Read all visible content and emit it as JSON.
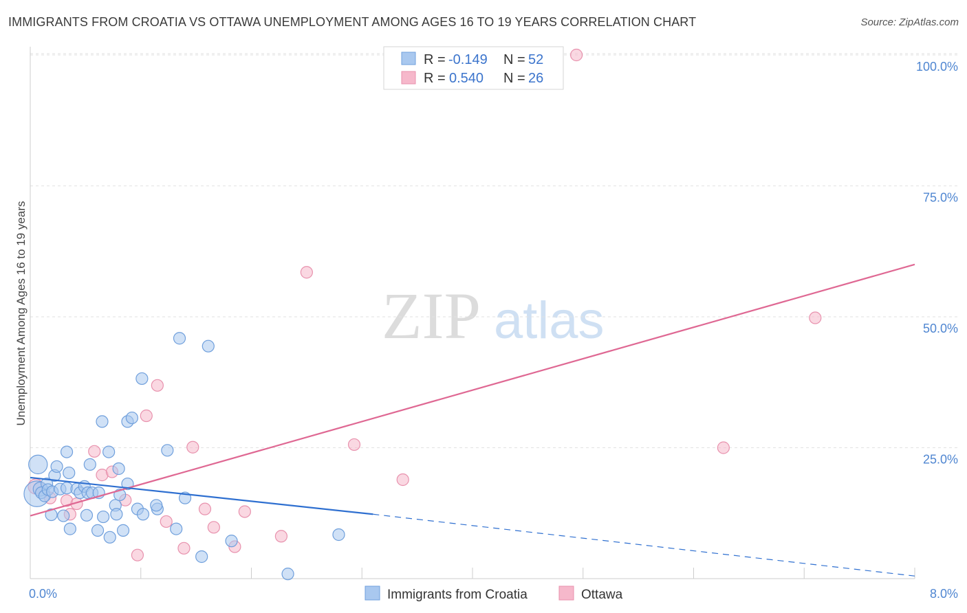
{
  "header": {
    "title": "IMMIGRANTS FROM CROATIA VS OTTAWA UNEMPLOYMENT AMONG AGES 16 TO 19 YEARS CORRELATION CHART",
    "source": "Source: ZipAtlas.com"
  },
  "watermark": {
    "zip": "ZIP",
    "atlas": "atlas"
  },
  "colors": {
    "blue_fill": "#a9c8ef",
    "blue_stroke": "#6f9fdc",
    "blue_line": "#2e6fd0",
    "pink_fill": "#f6b8cb",
    "pink_stroke": "#e891ad",
    "pink_line": "#df6893",
    "accent_text": "#4f86d1"
  },
  "legend": {
    "rows": [
      {
        "r_label": "R =",
        "r_value": "-0.149",
        "n_label": "N =",
        "n_value": "52"
      },
      {
        "r_label": "R =",
        "r_value": "0.540",
        "n_label": "N =",
        "n_value": "26"
      }
    ]
  },
  "bottom_legend": {
    "series1": "Immigrants from Croatia",
    "series2": "Ottawa"
  },
  "chart_data": {
    "type": "scatter",
    "title": "IMMIGRANTS FROM CROATIA VS OTTAWA UNEMPLOYMENT AMONG AGES 16 TO 19 YEARS CORRELATION CHART",
    "xlabel": "",
    "ylabel": "Unemployment Among Ages 16 to 19 years",
    "xlim": [
      0,
      8
    ],
    "ylim": [
      0,
      100
    ],
    "x_tick_labels": {
      "min": "0.0%",
      "max": "8.0%"
    },
    "y_ticks": [
      {
        "value": 100,
        "label": "100.0%"
      },
      {
        "value": 75,
        "label": "75.0%"
      },
      {
        "value": 50,
        "label": "50.0%"
      },
      {
        "value": 25,
        "label": "25.0%"
      }
    ],
    "series": [
      {
        "name": "Immigrants from Croatia",
        "r": -0.149,
        "n": 52,
        "trend": {
          "x0": 0,
          "y0": 19.3,
          "x1": 3.1,
          "y1": 12.3,
          "dash_to_x": 8,
          "dash_to_y": 0.5
        },
        "points": [
          {
            "x": 0.06,
            "y": 16.2,
            "s": 2.2
          },
          {
            "x": 0.07,
            "y": 21.8,
            "s": 1.6
          },
          {
            "x": 0.09,
            "y": 17.1,
            "s": 1.2
          },
          {
            "x": 0.1,
            "y": 16.4,
            "s": 1
          },
          {
            "x": 0.13,
            "y": 15.8,
            "s": 1
          },
          {
            "x": 0.15,
            "y": 18.1,
            "s": 1
          },
          {
            "x": 0.16,
            "y": 17.0,
            "s": 1
          },
          {
            "x": 0.19,
            "y": 12.2,
            "s": 1
          },
          {
            "x": 0.2,
            "y": 16.6,
            "s": 1
          },
          {
            "x": 0.22,
            "y": 19.7,
            "s": 1
          },
          {
            "x": 0.24,
            "y": 21.4,
            "s": 1
          },
          {
            "x": 0.27,
            "y": 17.1,
            "s": 1
          },
          {
            "x": 0.3,
            "y": 12.0,
            "s": 1
          },
          {
            "x": 0.33,
            "y": 24.2,
            "s": 1
          },
          {
            "x": 0.36,
            "y": 9.5,
            "s": 1
          },
          {
            "x": 0.33,
            "y": 17.3,
            "s": 1
          },
          {
            "x": 0.35,
            "y": 20.2,
            "s": 1
          },
          {
            "x": 0.42,
            "y": 17.1,
            "s": 1
          },
          {
            "x": 0.45,
            "y": 16.4,
            "s": 1
          },
          {
            "x": 0.49,
            "y": 17.6,
            "s": 1
          },
          {
            "x": 0.51,
            "y": 12.1,
            "s": 1
          },
          {
            "x": 0.52,
            "y": 16.4,
            "s": 1
          },
          {
            "x": 0.54,
            "y": 21.8,
            "s": 1
          },
          {
            "x": 0.56,
            "y": 16.4,
            "s": 1
          },
          {
            "x": 0.62,
            "y": 16.4,
            "s": 1
          },
          {
            "x": 0.65,
            "y": 30.0,
            "s": 1
          },
          {
            "x": 0.66,
            "y": 11.8,
            "s": 1
          },
          {
            "x": 0.61,
            "y": 9.2,
            "s": 1
          },
          {
            "x": 0.71,
            "y": 24.2,
            "s": 1
          },
          {
            "x": 0.72,
            "y": 7.9,
            "s": 1
          },
          {
            "x": 0.77,
            "y": 14.0,
            "s": 1
          },
          {
            "x": 0.78,
            "y": 12.3,
            "s": 1
          },
          {
            "x": 0.81,
            "y": 16.0,
            "s": 1
          },
          {
            "x": 0.8,
            "y": 21.0,
            "s": 1
          },
          {
            "x": 0.84,
            "y": 9.2,
            "s": 1
          },
          {
            "x": 0.88,
            "y": 30.0,
            "s": 1
          },
          {
            "x": 0.88,
            "y": 18.1,
            "s": 1
          },
          {
            "x": 0.92,
            "y": 30.7,
            "s": 1
          },
          {
            "x": 0.97,
            "y": 13.3,
            "s": 1
          },
          {
            "x": 1.02,
            "y": 12.3,
            "s": 1
          },
          {
            "x": 1.01,
            "y": 38.2,
            "s": 1
          },
          {
            "x": 1.15,
            "y": 13.3,
            "s": 1
          },
          {
            "x": 1.14,
            "y": 14.0,
            "s": 1
          },
          {
            "x": 1.24,
            "y": 24.5,
            "s": 1
          },
          {
            "x": 1.32,
            "y": 9.5,
            "s": 1
          },
          {
            "x": 1.35,
            "y": 45.9,
            "s": 1
          },
          {
            "x": 1.4,
            "y": 15.4,
            "s": 1
          },
          {
            "x": 1.55,
            "y": 4.2,
            "s": 1
          },
          {
            "x": 1.61,
            "y": 44.4,
            "s": 1
          },
          {
            "x": 1.82,
            "y": 7.2,
            "s": 1
          },
          {
            "x": 2.33,
            "y": 0.9,
            "s": 1
          },
          {
            "x": 2.79,
            "y": 8.4,
            "s": 1
          }
        ]
      },
      {
        "name": "Ottawa",
        "r": 0.54,
        "n": 26,
        "trend": {
          "x0": 0,
          "y0": 12.0,
          "x1": 8,
          "y1": 60.0
        },
        "points": [
          {
            "x": 0.05,
            "y": 17.6,
            "s": 1.3
          },
          {
            "x": 0.18,
            "y": 15.4,
            "s": 1
          },
          {
            "x": 0.33,
            "y": 14.9,
            "s": 1
          },
          {
            "x": 0.36,
            "y": 12.3,
            "s": 1
          },
          {
            "x": 0.42,
            "y": 14.3,
            "s": 1
          },
          {
            "x": 0.58,
            "y": 24.3,
            "s": 1
          },
          {
            "x": 0.65,
            "y": 19.8,
            "s": 1
          },
          {
            "x": 0.74,
            "y": 20.4,
            "s": 1
          },
          {
            "x": 0.86,
            "y": 15.0,
            "s": 1
          },
          {
            "x": 0.97,
            "y": 4.5,
            "s": 1
          },
          {
            "x": 1.05,
            "y": 31.1,
            "s": 1
          },
          {
            "x": 1.15,
            "y": 36.9,
            "s": 1
          },
          {
            "x": 1.23,
            "y": 10.9,
            "s": 1
          },
          {
            "x": 1.39,
            "y": 5.8,
            "s": 1
          },
          {
            "x": 1.47,
            "y": 25.1,
            "s": 1
          },
          {
            "x": 1.58,
            "y": 13.3,
            "s": 1
          },
          {
            "x": 1.66,
            "y": 9.8,
            "s": 1
          },
          {
            "x": 1.85,
            "y": 6.1,
            "s": 1
          },
          {
            "x": 1.94,
            "y": 12.8,
            "s": 1
          },
          {
            "x": 2.27,
            "y": 8.1,
            "s": 1
          },
          {
            "x": 2.5,
            "y": 58.5,
            "s": 1
          },
          {
            "x": 2.93,
            "y": 25.6,
            "s": 1
          },
          {
            "x": 3.37,
            "y": 18.9,
            "s": 1
          },
          {
            "x": 4.94,
            "y": 100.0,
            "s": 1
          },
          {
            "x": 6.27,
            "y": 25.0,
            "s": 1
          },
          {
            "x": 7.1,
            "y": 49.8,
            "s": 1
          }
        ]
      }
    ]
  }
}
